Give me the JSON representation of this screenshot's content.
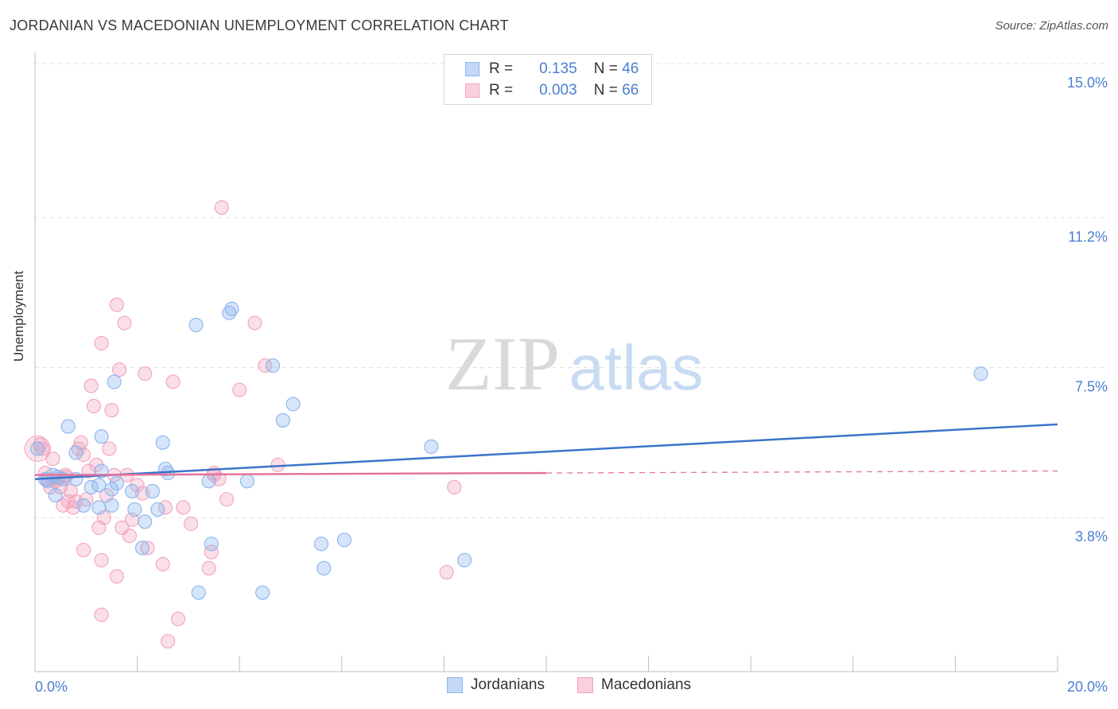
{
  "title": "JORDANIAN VS MACEDONIAN UNEMPLOYMENT CORRELATION CHART",
  "source": "Source: ZipAtlas.com",
  "watermark": {
    "zip": "ZIP",
    "atlas": "atlas"
  },
  "legend": {
    "r_label": "R =",
    "n_label": "N =",
    "rows": [
      {
        "r": "0.135",
        "n": "46"
      },
      {
        "r": "0.003",
        "n": "66"
      }
    ]
  },
  "chart_data": {
    "type": "scatter",
    "title": "JORDANIAN VS MACEDONIAN UNEMPLOYMENT CORRELATION CHART",
    "xlabel": "",
    "ylabel": "Unemployment",
    "xlim": [
      0,
      20
    ],
    "ylim": [
      0,
      15.5
    ],
    "x_tick_labels": [
      "0.0%",
      "20.0%"
    ],
    "y_ticks": [
      3.8,
      7.5,
      11.2,
      15.0
    ],
    "y_tick_labels": [
      "3.8%",
      "7.5%",
      "11.2%",
      "15.0%"
    ],
    "grid": true,
    "legend_position": "top-center",
    "colors": {
      "jordanians": "#8ab4ee",
      "macedonians": "#f2a3bd",
      "jordanians_line": "#3a74c9",
      "macedonians_line": "#e4739b",
      "tick_label": "#4a7fd0"
    },
    "series": [
      {
        "name": "Jordanians",
        "r": 0.135,
        "n": 46,
        "trend": {
          "x": [
            0,
            20
          ],
          "y": [
            4.75,
            6.1
          ]
        },
        "points": [
          [
            0.35,
            4.85
          ],
          [
            0.55,
            4.75
          ],
          [
            0.8,
            4.75
          ],
          [
            0.25,
            4.7
          ],
          [
            0.4,
            4.35
          ],
          [
            1.1,
            4.55
          ],
          [
            1.3,
            4.95
          ],
          [
            1.6,
            4.65
          ],
          [
            1.5,
            4.5
          ],
          [
            1.5,
            4.1
          ],
          [
            1.25,
            4.05
          ],
          [
            0.95,
            4.1
          ],
          [
            1.9,
            4.45
          ],
          [
            1.95,
            4.0
          ],
          [
            2.15,
            3.7
          ],
          [
            2.1,
            3.05
          ],
          [
            2.4,
            4.0
          ],
          [
            2.3,
            4.45
          ],
          [
            2.6,
            4.9
          ],
          [
            2.55,
            5.0
          ],
          [
            2.5,
            5.65
          ],
          [
            0.65,
            6.05
          ],
          [
            1.3,
            5.8
          ],
          [
            0.8,
            5.4
          ],
          [
            1.55,
            7.15
          ],
          [
            3.15,
            8.55
          ],
          [
            3.8,
            8.85
          ],
          [
            3.85,
            8.95
          ],
          [
            3.4,
            4.7
          ],
          [
            3.45,
            3.15
          ],
          [
            3.2,
            1.95
          ],
          [
            4.15,
            4.7
          ],
          [
            4.45,
            1.95
          ],
          [
            4.65,
            7.55
          ],
          [
            4.85,
            6.2
          ],
          [
            5.05,
            6.6
          ],
          [
            5.6,
            3.15
          ],
          [
            5.65,
            2.55
          ],
          [
            6.05,
            3.25
          ],
          [
            7.75,
            5.55
          ],
          [
            8.4,
            2.75
          ],
          [
            18.5,
            7.35
          ],
          [
            0.05,
            5.5
          ],
          [
            0.2,
            4.75
          ],
          [
            1.25,
            4.6
          ],
          [
            0.45,
            4.8
          ]
        ]
      },
      {
        "name": "Macedonians",
        "r": 0.003,
        "n": 66,
        "trend": {
          "x": [
            0,
            10
          ],
          "y": [
            4.85,
            4.9
          ]
        },
        "trend_extension": {
          "x": [
            10,
            20
          ],
          "y": [
            4.9,
            4.95
          ]
        },
        "points": [
          [
            0.1,
            5.6
          ],
          [
            0.15,
            5.5
          ],
          [
            0.2,
            4.9
          ],
          [
            0.25,
            4.75
          ],
          [
            0.3,
            4.55
          ],
          [
            0.35,
            5.25
          ],
          [
            0.45,
            4.75
          ],
          [
            0.5,
            4.55
          ],
          [
            0.55,
            4.1
          ],
          [
            0.6,
            4.85
          ],
          [
            0.65,
            4.2
          ],
          [
            0.7,
            4.45
          ],
          [
            0.75,
            4.05
          ],
          [
            0.8,
            4.2
          ],
          [
            0.9,
            5.65
          ],
          [
            0.85,
            5.5
          ],
          [
            0.95,
            5.35
          ],
          [
            1.0,
            4.25
          ],
          [
            1.05,
            4.95
          ],
          [
            1.1,
            7.05
          ],
          [
            1.15,
            6.55
          ],
          [
            1.2,
            5.1
          ],
          [
            1.25,
            3.55
          ],
          [
            1.3,
            2.75
          ],
          [
            1.35,
            3.8
          ],
          [
            1.4,
            4.35
          ],
          [
            1.3,
            8.1
          ],
          [
            1.45,
            5.5
          ],
          [
            1.5,
            6.45
          ],
          [
            1.55,
            4.85
          ],
          [
            1.6,
            9.05
          ],
          [
            1.65,
            7.45
          ],
          [
            1.7,
            3.55
          ],
          [
            1.75,
            8.6
          ],
          [
            1.8,
            4.85
          ],
          [
            1.85,
            3.35
          ],
          [
            1.9,
            3.75
          ],
          [
            2.0,
            4.6
          ],
          [
            2.1,
            4.4
          ],
          [
            2.15,
            7.35
          ],
          [
            2.2,
            3.05
          ],
          [
            2.5,
            2.65
          ],
          [
            2.55,
            4.05
          ],
          [
            2.6,
            0.75
          ],
          [
            2.7,
            7.15
          ],
          [
            2.8,
            1.3
          ],
          [
            2.9,
            4.05
          ],
          [
            3.05,
            3.65
          ],
          [
            3.4,
            2.55
          ],
          [
            3.45,
            2.95
          ],
          [
            3.5,
            4.85
          ],
          [
            3.6,
            4.75
          ],
          [
            3.65,
            11.45
          ],
          [
            3.75,
            4.25
          ],
          [
            4.0,
            6.95
          ],
          [
            4.3,
            8.6
          ],
          [
            4.5,
            7.55
          ],
          [
            4.75,
            5.1
          ],
          [
            1.6,
            2.35
          ],
          [
            1.3,
            1.4
          ],
          [
            0.95,
            3.0
          ],
          [
            8.05,
            2.45
          ],
          [
            8.2,
            4.55
          ],
          [
            3.5,
            4.9
          ],
          [
            0.6,
            4.8
          ],
          [
            0.4,
            4.7
          ]
        ]
      }
    ]
  }
}
